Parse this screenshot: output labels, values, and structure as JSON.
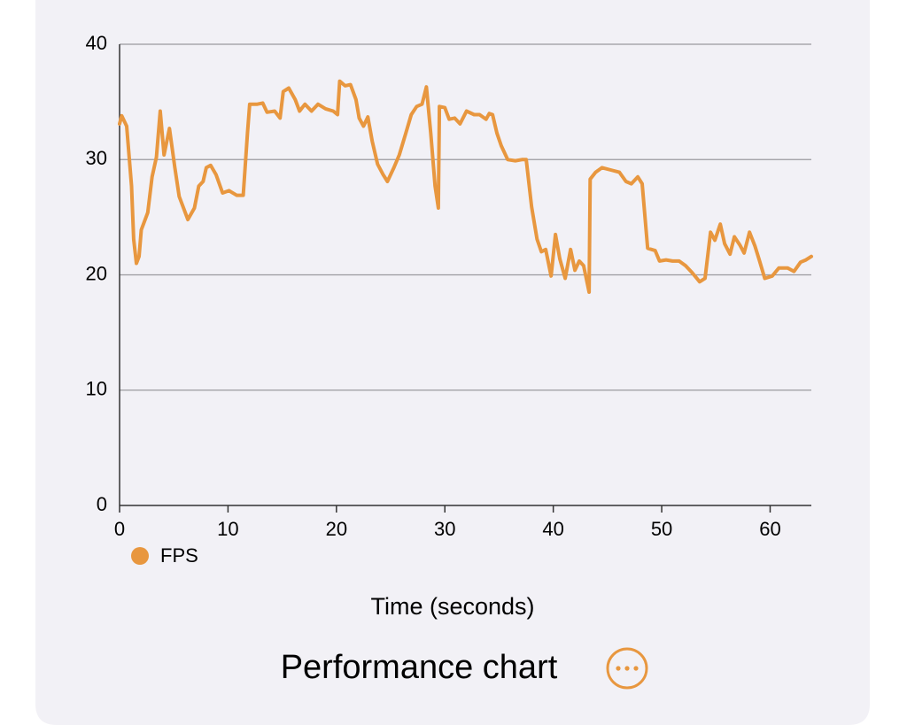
{
  "chart_data": {
    "type": "line",
    "title": "Performance chart",
    "x_label": "Time (seconds)",
    "xlim": [
      0,
      63.8
    ],
    "ylim": [
      0,
      40
    ],
    "xticks": [
      0,
      10,
      20,
      30,
      40,
      50,
      60
    ],
    "yticks": [
      0,
      10,
      20,
      30,
      40
    ],
    "grid": true,
    "x": [
      0,
      0.2,
      0.65,
      1.1,
      1.3,
      1.55,
      1.8,
      2.0,
      2.6,
      3.0,
      3.4,
      3.75,
      4.1,
      4.6,
      5.1,
      5.5,
      6.3,
      6.9,
      7.3,
      7.7,
      8.0,
      8.4,
      8.9,
      9.5,
      10.1,
      10.8,
      11.4,
      11.8,
      12.0,
      12.7,
      13.2,
      13.6,
      14.3,
      14.8,
      15.1,
      15.6,
      16.2,
      16.6,
      17.1,
      17.7,
      18.3,
      19.0,
      19.7,
      20.1,
      20.3,
      20.8,
      21.3,
      21.8,
      22.1,
      22.5,
      22.9,
      23.3,
      23.8,
      24.3,
      24.7,
      25.3,
      25.8,
      26.4,
      26.9,
      27.4,
      27.9,
      28.3,
      28.7,
      29.1,
      29.4,
      29.5,
      30.0,
      30.4,
      30.9,
      31.4,
      32.0,
      32.7,
      33.2,
      33.8,
      34.1,
      34.4,
      34.8,
      35.2,
      35.8,
      36.5,
      37.1,
      37.5,
      38.0,
      38.5,
      38.9,
      39.3,
      39.8,
      40.2,
      40.6,
      41.1,
      41.6,
      42.0,
      42.4,
      42.8,
      43.3,
      43.4,
      43.9,
      44.5,
      45.3,
      46.1,
      46.7,
      47.2,
      47.8,
      48.2,
      48.7,
      49.4,
      49.8,
      50.4,
      51.0,
      51.6,
      52.2,
      52.8,
      53.5,
      54.0,
      54.5,
      54.9,
      55.4,
      55.8,
      56.3,
      56.7,
      57.2,
      57.6,
      58.1,
      58.6,
      59.0,
      59.5,
      60.2,
      60.8,
      61.6,
      62.2,
      62.8,
      63.3,
      63.8
    ],
    "series": [
      {
        "name": "FPS",
        "color": "#e8973f",
        "values": [
          33.1,
          33.8,
          32.9,
          27.7,
          23.1,
          21.0,
          21.6,
          23.9,
          25.4,
          28.5,
          30.2,
          34.2,
          30.4,
          32.7,
          29.3,
          26.8,
          24.8,
          25.8,
          27.7,
          28.1,
          29.3,
          29.5,
          28.7,
          27.1,
          27.3,
          26.9,
          26.9,
          32.3,
          34.8,
          34.8,
          34.9,
          34.1,
          34.2,
          33.6,
          35.9,
          36.2,
          35.2,
          34.2,
          34.8,
          34.2,
          34.8,
          34.4,
          34.2,
          33.9,
          36.8,
          36.4,
          36.5,
          35.2,
          33.6,
          32.9,
          33.7,
          31.6,
          29.6,
          28.7,
          28.1,
          29.3,
          30.4,
          32.3,
          33.9,
          34.6,
          34.8,
          36.3,
          32.3,
          27.7,
          25.8,
          34.6,
          34.5,
          33.5,
          33.6,
          33.1,
          34.2,
          33.9,
          33.9,
          33.5,
          34.0,
          33.9,
          32.3,
          31.2,
          30.0,
          29.9,
          30.0,
          30.0,
          25.9,
          23.1,
          22.0,
          22.2,
          19.9,
          23.5,
          21.4,
          19.7,
          22.2,
          20.4,
          21.2,
          20.8,
          18.5,
          28.3,
          28.9,
          29.3,
          29.1,
          28.9,
          28.1,
          27.9,
          28.5,
          27.9,
          22.3,
          22.1,
          21.2,
          21.3,
          21.2,
          21.2,
          20.8,
          20.2,
          19.4,
          19.7,
          23.7,
          23.0,
          24.4,
          22.7,
          21.8,
          23.3,
          22.6,
          21.9,
          23.7,
          22.5,
          21.3,
          19.7,
          19.9,
          20.6,
          20.6,
          20.3,
          21.1,
          21.3,
          21.6
        ]
      }
    ]
  }
}
